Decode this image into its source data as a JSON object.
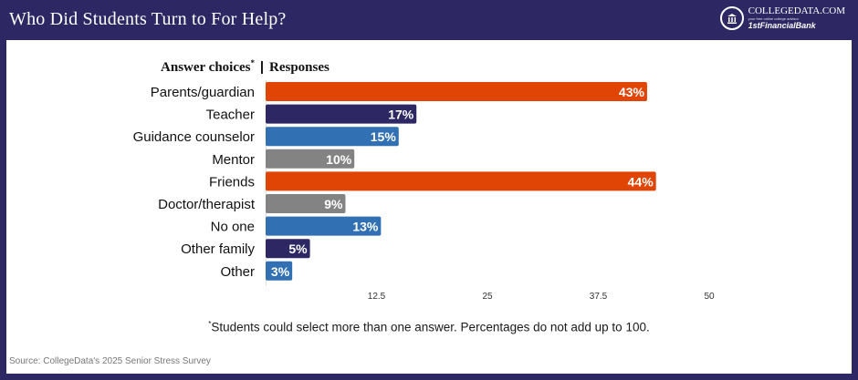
{
  "header": {
    "title": "Who Did Students Turn to For Help?",
    "logo_main": "COLLEGEDATA.COM",
    "logo_tagline": "your free online college advisor",
    "logo_bank": "1stFinancialBank"
  },
  "chart_data": {
    "type": "bar",
    "orientation": "horizontal",
    "category_header": "Answer choices",
    "category_header_mark": "*",
    "header_separator": "|",
    "value_header": "Responses",
    "categories": [
      "Parents/guardian",
      "Teacher",
      "Guidance counselor",
      "Mentor",
      "Friends",
      "Doctor/therapist",
      "No one",
      "Other family",
      "Other"
    ],
    "values": [
      43,
      17,
      15,
      10,
      44,
      9,
      13,
      5,
      3
    ],
    "value_labels": [
      "43%",
      "17%",
      "15%",
      "10%",
      "44%",
      "9%",
      "13%",
      "5%",
      "3%"
    ],
    "colors": [
      "#e04506",
      "#2d2763",
      "#3070b3",
      "#838383",
      "#e04506",
      "#838383",
      "#3070b3",
      "#2d2763",
      "#3070b3"
    ],
    "x_ticks": [
      12.5,
      25,
      37.5,
      50
    ],
    "x_tick_labels": [
      "12.5",
      "25",
      "37.5",
      "50"
    ],
    "xlim": [
      0,
      50
    ],
    "grid": false
  },
  "footnote": {
    "mark": "*",
    "text": "Students could select more than one answer. Percentages do not add up to 100."
  },
  "source": "Source: CollegeData's 2025 Senior Stress Survey"
}
